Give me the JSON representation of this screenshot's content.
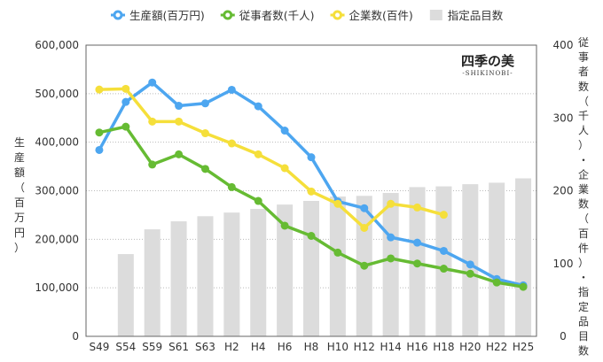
{
  "chart_data": {
    "type": "bar+line",
    "categories": [
      "S49",
      "S54",
      "S59",
      "S61",
      "S63",
      "H2",
      "H4",
      "H6",
      "H8",
      "H10",
      "H12",
      "H14",
      "H16",
      "H18",
      "H20",
      "H22",
      "H25"
    ],
    "ylabel_left": "生産額（百万円）",
    "ylabel_right": "従事者数（千人）・企業数（百件）・指定品目数",
    "ylim_left": [
      0,
      600000
    ],
    "ylim_right": [
      0,
      400
    ],
    "yticks_left": [
      "0",
      "100,000",
      "200,000",
      "300,000",
      "400,000",
      "500,000",
      "600,000"
    ],
    "yticks_right": [
      "0",
      "100",
      "200",
      "300",
      "400"
    ],
    "grid": true,
    "legend_position": "top",
    "series": [
      {
        "name": "生産額(百万円)",
        "type": "line",
        "axis": "left",
        "color": "#4da6f0",
        "values": [
          384000,
          483000,
          523000,
          475000,
          480000,
          508000,
          474000,
          424000,
          369000,
          278000,
          264000,
          204000,
          193000,
          176000,
          148000,
          118000,
          105000
        ]
      },
      {
        "name": "従事者数(千人)",
        "type": "line",
        "axis": "right",
        "color": "#66bb33",
        "values": [
          280,
          288,
          236,
          250,
          230,
          205,
          186,
          152,
          138,
          115,
          97,
          107,
          100,
          93,
          86,
          74,
          68
        ]
      },
      {
        "name": "企業数(百件)",
        "type": "line",
        "axis": "right",
        "color": "#f5df3a",
        "values": [
          339,
          340,
          295,
          295,
          279,
          265,
          250,
          231,
          199,
          182,
          149,
          182,
          177,
          167,
          null,
          null,
          null
        ]
      },
      {
        "name": "指定品目数",
        "type": "bar",
        "axis": "right",
        "color": "#dcdcdc",
        "values": [
          null,
          113,
          147,
          158,
          165,
          170,
          175,
          181,
          186,
          192,
          193,
          197,
          205,
          206,
          209,
          211,
          217
        ]
      }
    ]
  },
  "logo": {
    "jp": "四季の美",
    "en": "-SHIKINOBI-"
  }
}
